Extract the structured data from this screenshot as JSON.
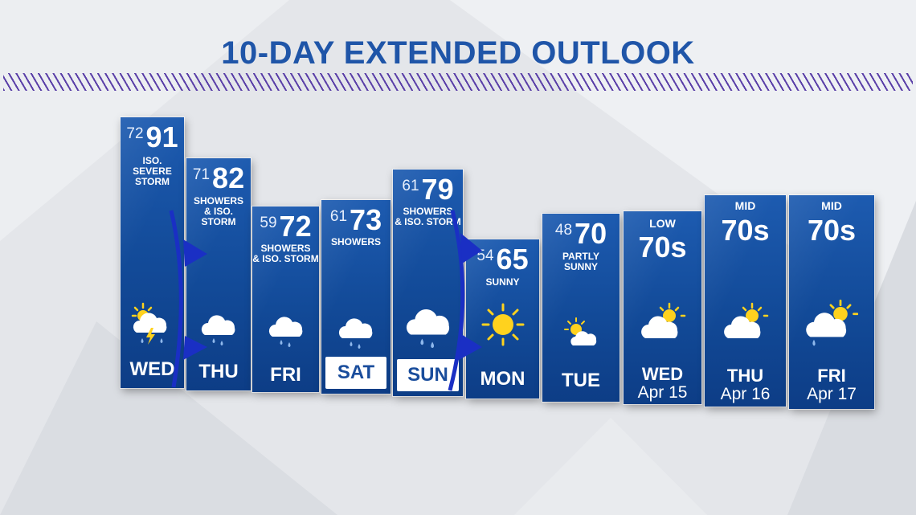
{
  "title": "10-DAY EXTENDED OUTLOOK",
  "colors": {
    "title": "#1f55a8",
    "panel": "#1552a2",
    "hatch": "#5a3fa8",
    "front": "#1a2fc4",
    "sun": "#ffd21e"
  },
  "days": [
    {
      "day": "WED",
      "low": "72",
      "high": "91",
      "condition": [
        "ISO.",
        "SEVERE STORM"
      ],
      "icon": "thunderstorm-icon"
    },
    {
      "day": "THU",
      "low": "71",
      "high": "82",
      "condition": [
        "SHOWERS",
        "& ISO. STORM"
      ],
      "icon": "rain-cloud-icon"
    },
    {
      "day": "FRI",
      "low": "59",
      "high": "72",
      "condition": [
        "SHOWERS",
        "& ISO. STORM"
      ],
      "icon": "rain-cloud-icon"
    },
    {
      "day": "SAT",
      "low": "61",
      "high": "73",
      "condition": [
        "SHOWERS"
      ],
      "icon": "rain-cloud-icon"
    },
    {
      "day": "SUN",
      "low": "61",
      "high": "79",
      "condition": [
        "SHOWERS",
        "& ISO. STORM"
      ],
      "icon": "rain-cloud-icon"
    },
    {
      "day": "MON",
      "low": "54",
      "high": "65",
      "condition": [
        "SUNNY"
      ],
      "icon": "sun-icon"
    },
    {
      "day": "TUE",
      "low": "48",
      "high": "70",
      "condition": [
        "PARTLY",
        "SUNNY"
      ],
      "icon": "partly-sunny-icon"
    },
    {
      "day": "WED",
      "date": "Apr 15",
      "qualifier": "LOW",
      "temp": "70s",
      "icon": "partly-cloudy-icon"
    },
    {
      "day": "THU",
      "date": "Apr 16",
      "qualifier": "MID",
      "temp": "70s",
      "icon": "partly-cloudy-icon"
    },
    {
      "day": "FRI",
      "date": "Apr 17",
      "qualifier": "MID",
      "temp": "70s",
      "icon": "partly-cloudy-rain-icon"
    }
  ]
}
